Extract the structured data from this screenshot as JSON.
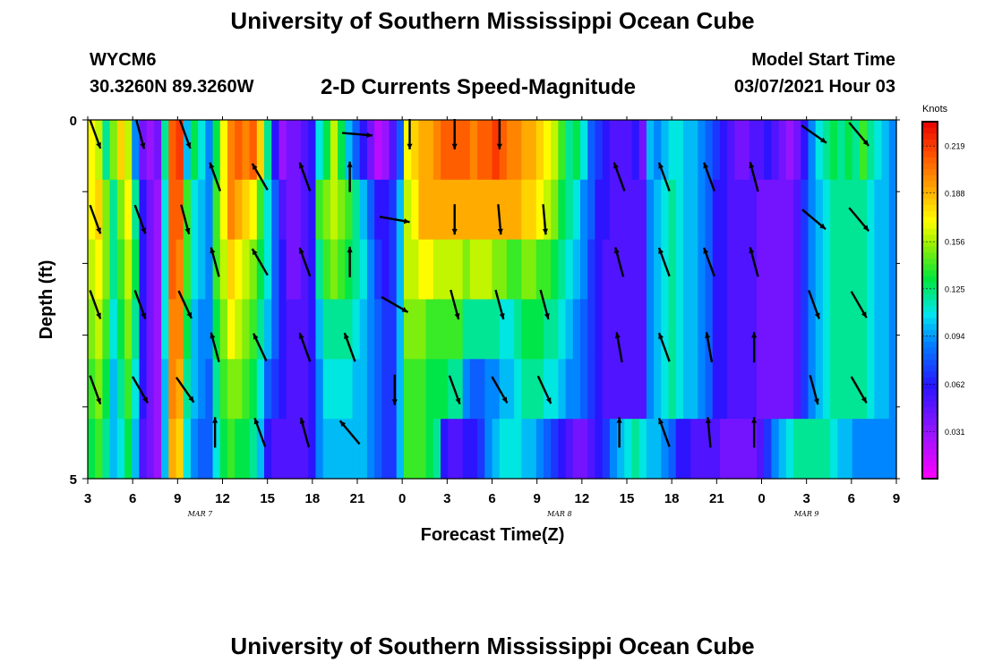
{
  "header": {
    "title": "University of Southern Mississippi Ocean Cube",
    "station": "WYCM6",
    "coords": "30.3260N 89.3260W",
    "subtitle": "2-D Currents Speed-Magnitude",
    "start_label": "Model Start Time",
    "start_value": "03/07/2021 Hour 03"
  },
  "footer": {
    "title": "University of Southern Mississippi Ocean Cube"
  },
  "chart_data": {
    "type": "heatmap",
    "title": "2-D Currents Speed-Magnitude",
    "xlabel": "Forecast Time(Z)",
    "ylabel": "Depth (ft)",
    "x_ticks": [
      "3",
      "6",
      "9",
      "12",
      "15",
      "18",
      "21",
      "0",
      "3",
      "6",
      "9",
      "12",
      "15",
      "18",
      "21",
      "0",
      "3",
      "6",
      "9"
    ],
    "date_labels": [
      {
        "label": "MAR 7",
        "at_hour_index": 2.5
      },
      {
        "label": "MAR 8",
        "at_hour_index": 10.5
      },
      {
        "label": "MAR 9",
        "at_hour_index": 16
      }
    ],
    "y_ticks": [
      "0",
      "5"
    ],
    "ylim": [
      0,
      5
    ],
    "hours_span": [
      0,
      54
    ],
    "colorbar": {
      "title": "Knots",
      "ticks": [
        "0.219",
        "0.188",
        "0.156",
        "0.125",
        "0.094",
        "0.062",
        "0.031"
      ],
      "range": [
        0.0,
        0.235
      ]
    },
    "speed_grid": [
      [
        0.17,
        0.16,
        0.12,
        0.15,
        0.18,
        0.16,
        0.09,
        0.04,
        0.03,
        0.04,
        0.12,
        0.21,
        0.22,
        0.1,
        0.13,
        0.11,
        0.09,
        0.13,
        0.17,
        0.2,
        0.21,
        0.2,
        0.21,
        0.18,
        0.12,
        0.06,
        0.03,
        0.04,
        0.04,
        0.05,
        0.06,
        0.11,
        0.13,
        0.16,
        0.13,
        0.1,
        0.08,
        0.06,
        0.04,
        0.02,
        0.03,
        0.05,
        0.08,
        0.17,
        0.18,
        0.19,
        0.19,
        0.2,
        0.21,
        0.21,
        0.21,
        0.21,
        0.2,
        0.21,
        0.21,
        0.22,
        0.21,
        0.2,
        0.2,
        0.19,
        0.19,
        0.18,
        0.17,
        0.16,
        0.14,
        0.12,
        0.13,
        0.11,
        0.08,
        0.07,
        0.06,
        0.05,
        0.05,
        0.05,
        0.06,
        0.04,
        0.1,
        0.09,
        0.1,
        0.11,
        0.11,
        0.1,
        0.1,
        0.09,
        0.08,
        0.07,
        0.06,
        0.05,
        0.04,
        0.04,
        0.05,
        0.05,
        0.06,
        0.05,
        0.04,
        0.03,
        0.04,
        0.06,
        0.09,
        0.11,
        0.12,
        0.13,
        0.12,
        0.13,
        0.12,
        0.14,
        0.12,
        0.11,
        0.1,
        0.09
      ],
      [
        0.17,
        0.18,
        0.15,
        0.12,
        0.15,
        0.17,
        0.12,
        0.06,
        0.04,
        0.03,
        0.11,
        0.21,
        0.21,
        0.14,
        0.11,
        0.1,
        0.09,
        0.14,
        0.17,
        0.2,
        0.19,
        0.18,
        0.17,
        0.14,
        0.11,
        0.08,
        0.05,
        0.04,
        0.04,
        0.05,
        0.06,
        0.14,
        0.15,
        0.16,
        0.15,
        0.14,
        0.12,
        0.1,
        0.08,
        0.06,
        0.06,
        0.07,
        0.1,
        0.16,
        0.17,
        0.19,
        0.19,
        0.19,
        0.19,
        0.19,
        0.19,
        0.19,
        0.19,
        0.19,
        0.19,
        0.19,
        0.19,
        0.19,
        0.19,
        0.18,
        0.18,
        0.17,
        0.16,
        0.15,
        0.13,
        0.12,
        0.11,
        0.09,
        0.08,
        0.06,
        0.06,
        0.05,
        0.05,
        0.05,
        0.05,
        0.05,
        0.09,
        0.1,
        0.11,
        0.12,
        0.11,
        0.1,
        0.1,
        0.09,
        0.08,
        0.06,
        0.06,
        0.05,
        0.05,
        0.05,
        0.05,
        0.04,
        0.04,
        0.04,
        0.04,
        0.04,
        0.05,
        0.07,
        0.09,
        0.1,
        0.11,
        0.12,
        0.12,
        0.12,
        0.12,
        0.12,
        0.11,
        0.1,
        0.1,
        0.09
      ],
      [
        0.16,
        0.17,
        0.15,
        0.12,
        0.14,
        0.16,
        0.13,
        0.06,
        0.04,
        0.03,
        0.11,
        0.21,
        0.2,
        0.14,
        0.11,
        0.1,
        0.09,
        0.14,
        0.16,
        0.18,
        0.17,
        0.16,
        0.15,
        0.13,
        0.11,
        0.08,
        0.06,
        0.04,
        0.04,
        0.05,
        0.06,
        0.12,
        0.14,
        0.15,
        0.14,
        0.13,
        0.12,
        0.11,
        0.09,
        0.07,
        0.06,
        0.07,
        0.1,
        0.16,
        0.16,
        0.17,
        0.17,
        0.16,
        0.16,
        0.16,
        0.16,
        0.15,
        0.16,
        0.16,
        0.16,
        0.15,
        0.15,
        0.14,
        0.14,
        0.15,
        0.15,
        0.14,
        0.14,
        0.13,
        0.12,
        0.11,
        0.1,
        0.09,
        0.07,
        0.06,
        0.05,
        0.05,
        0.05,
        0.05,
        0.05,
        0.05,
        0.09,
        0.1,
        0.11,
        0.12,
        0.11,
        0.1,
        0.1,
        0.09,
        0.08,
        0.06,
        0.06,
        0.05,
        0.05,
        0.05,
        0.05,
        0.04,
        0.04,
        0.04,
        0.04,
        0.04,
        0.05,
        0.07,
        0.09,
        0.1,
        0.11,
        0.12,
        0.12,
        0.12,
        0.12,
        0.12,
        0.11,
        0.1,
        0.1,
        0.09
      ],
      [
        0.15,
        0.16,
        0.14,
        0.11,
        0.13,
        0.15,
        0.12,
        0.06,
        0.04,
        0.03,
        0.11,
        0.2,
        0.2,
        0.13,
        0.1,
        0.09,
        0.09,
        0.13,
        0.15,
        0.17,
        0.16,
        0.15,
        0.14,
        0.12,
        0.1,
        0.08,
        0.06,
        0.05,
        0.05,
        0.05,
        0.06,
        0.1,
        0.12,
        0.12,
        0.12,
        0.12,
        0.11,
        0.1,
        0.09,
        0.08,
        0.07,
        0.07,
        0.1,
        0.15,
        0.15,
        0.15,
        0.14,
        0.14,
        0.14,
        0.14,
        0.14,
        0.12,
        0.12,
        0.12,
        0.12,
        0.12,
        0.11,
        0.11,
        0.12,
        0.13,
        0.13,
        0.13,
        0.12,
        0.12,
        0.11,
        0.1,
        0.09,
        0.08,
        0.07,
        0.06,
        0.05,
        0.05,
        0.05,
        0.05,
        0.05,
        0.05,
        0.09,
        0.1,
        0.11,
        0.12,
        0.11,
        0.1,
        0.1,
        0.09,
        0.08,
        0.06,
        0.06,
        0.05,
        0.05,
        0.05,
        0.05,
        0.04,
        0.04,
        0.04,
        0.04,
        0.04,
        0.05,
        0.07,
        0.09,
        0.1,
        0.11,
        0.12,
        0.12,
        0.12,
        0.12,
        0.12,
        0.11,
        0.1,
        0.1,
        0.09
      ],
      [
        0.14,
        0.15,
        0.13,
        0.1,
        0.12,
        0.14,
        0.11,
        0.06,
        0.04,
        0.03,
        0.1,
        0.2,
        0.19,
        0.12,
        0.1,
        0.09,
        0.08,
        0.12,
        0.14,
        0.15,
        0.15,
        0.14,
        0.13,
        0.11,
        0.08,
        0.07,
        0.06,
        0.05,
        0.05,
        0.05,
        0.06,
        0.09,
        0.11,
        0.11,
        0.11,
        0.11,
        0.1,
        0.1,
        0.09,
        0.08,
        0.07,
        0.07,
        0.1,
        0.14,
        0.14,
        0.14,
        0.13,
        0.13,
        0.13,
        0.12,
        0.12,
        0.09,
        0.08,
        0.08,
        0.09,
        0.09,
        0.1,
        0.1,
        0.11,
        0.12,
        0.12,
        0.12,
        0.11,
        0.11,
        0.1,
        0.09,
        0.09,
        0.08,
        0.07,
        0.06,
        0.05,
        0.05,
        0.05,
        0.05,
        0.05,
        0.05,
        0.09,
        0.1,
        0.11,
        0.12,
        0.11,
        0.1,
        0.1,
        0.09,
        0.08,
        0.06,
        0.06,
        0.05,
        0.05,
        0.05,
        0.05,
        0.04,
        0.04,
        0.04,
        0.04,
        0.04,
        0.05,
        0.07,
        0.09,
        0.1,
        0.11,
        0.12,
        0.12,
        0.12,
        0.12,
        0.12,
        0.11,
        0.1,
        0.1,
        0.09
      ],
      [
        0.13,
        0.14,
        0.12,
        0.1,
        0.11,
        0.13,
        0.1,
        0.05,
        0.04,
        0.03,
        0.1,
        0.19,
        0.18,
        0.11,
        0.09,
        0.08,
        0.08,
        0.11,
        0.13,
        0.14,
        0.13,
        0.13,
        0.12,
        0.1,
        0.06,
        0.05,
        0.05,
        0.05,
        0.05,
        0.05,
        0.06,
        0.09,
        0.1,
        0.1,
        0.1,
        0.1,
        0.1,
        0.1,
        0.09,
        0.08,
        0.07,
        0.07,
        0.1,
        0.14,
        0.14,
        0.14,
        0.13,
        0.12,
        0.06,
        0.05,
        0.05,
        0.06,
        0.06,
        0.07,
        0.09,
        0.1,
        0.11,
        0.11,
        0.11,
        0.1,
        0.1,
        0.09,
        0.08,
        0.07,
        0.06,
        0.05,
        0.04,
        0.04,
        0.05,
        0.06,
        0.07,
        0.09,
        0.1,
        0.11,
        0.12,
        0.11,
        0.1,
        0.1,
        0.09,
        0.08,
        0.06,
        0.06,
        0.05,
        0.05,
        0.05,
        0.05,
        0.04,
        0.04,
        0.04,
        0.04,
        0.04,
        0.05,
        0.07,
        0.09,
        0.1,
        0.11,
        0.12,
        0.12,
        0.12,
        0.12,
        0.12,
        0.11,
        0.1,
        0.1,
        0.09,
        0.09,
        0.09,
        0.09,
        0.09,
        0.09
      ]
    ],
    "arrow_rows": [
      [
        [
          2,
          160
        ],
        [
          3,
          160
        ],
        [
          4,
          160
        ],
        [
          0,
          0
        ],
        [
          0,
          0
        ],
        [
          0,
          0
        ],
        [
          0,
          0
        ],
        [
          0,
          0
        ],
        [
          1,
          95
        ],
        [
          2,
          180
        ],
        [
          3,
          180
        ],
        [
          4,
          180
        ],
        [
          0,
          0
        ],
        [
          0,
          0
        ],
        [
          0,
          0
        ],
        [
          0,
          0
        ],
        [
          0,
          0
        ],
        [
          0,
          0
        ],
        [
          0,
          0
        ],
        [
          0,
          0
        ],
        [
          0,
          0
        ],
        [
          0,
          0
        ],
        [
          3,
          125
        ],
        [
          4,
          135
        ]
      ],
      [
        [
          5,
          160
        ],
        [
          6,
          160
        ],
        [
          7,
          160
        ],
        [
          8,
          160
        ],
        [
          9,
          150
        ],
        [
          10,
          160
        ],
        [
          11,
          0
        ],
        [
          12,
          100
        ],
        [
          13,
          180
        ],
        [
          14,
          175
        ],
        [
          15,
          175
        ],
        [
          16,
          345
        ],
        [
          17,
          340
        ],
        [
          18,
          340
        ],
        [
          19,
          340
        ],
        [
          20,
          345
        ],
        [
          21,
          340
        ],
        [
          22,
          125
        ],
        [
          23,
          140
        ]
      ],
      [
        [
          0,
          0
        ]
      ]
    ],
    "arrows": [
      {
        "x_hour": 3.5,
        "row": 0,
        "angle": 160
      },
      {
        "x_hour": 6.5,
        "row": 0,
        "angle": 165
      },
      {
        "x_hour": 9.5,
        "row": 0,
        "angle": 160
      },
      {
        "x_hour": 21.0,
        "row": 0,
        "angle": 95
      },
      {
        "x_hour": 24.5,
        "row": 0,
        "angle": 180
      },
      {
        "x_hour": 27.5,
        "row": 0,
        "angle": 180
      },
      {
        "x_hour": 30.5,
        "row": 0,
        "angle": 180
      },
      {
        "x_hour": 51.5,
        "row": 0,
        "angle": 125
      },
      {
        "x_hour": 54.5,
        "row": 0,
        "angle": 140
      },
      {
        "x_hour": 11.5,
        "row": 1,
        "angle": 340
      },
      {
        "x_hour": 14.5,
        "row": 1,
        "angle": 330
      },
      {
        "x_hour": 17.5,
        "row": 1,
        "angle": 340
      },
      {
        "x_hour": 20.5,
        "row": 1,
        "angle": 0
      },
      {
        "x_hour": 38.5,
        "row": 1,
        "angle": 340
      },
      {
        "x_hour": 41.5,
        "row": 1,
        "angle": 340
      },
      {
        "x_hour": 44.5,
        "row": 1,
        "angle": 340
      },
      {
        "x_hour": 47.5,
        "row": 1,
        "angle": 345
      },
      {
        "x_hour": 3.5,
        "row": 2,
        "angle": 160
      },
      {
        "x_hour": 6.5,
        "row": 2,
        "angle": 160
      },
      {
        "x_hour": 9.5,
        "row": 2,
        "angle": 165
      },
      {
        "x_hour": 23.5,
        "row": 2,
        "angle": 100
      },
      {
        "x_hour": 27.5,
        "row": 2,
        "angle": 180
      },
      {
        "x_hour": 30.5,
        "row": 2,
        "angle": 175
      },
      {
        "x_hour": 33.5,
        "row": 2,
        "angle": 175
      },
      {
        "x_hour": 51.5,
        "row": 2,
        "angle": 130
      },
      {
        "x_hour": 54.5,
        "row": 2,
        "angle": 140
      },
      {
        "x_hour": 11.5,
        "row": 3,
        "angle": 345
      },
      {
        "x_hour": 14.5,
        "row": 3,
        "angle": 330
      },
      {
        "x_hour": 17.5,
        "row": 3,
        "angle": 340
      },
      {
        "x_hour": 20.5,
        "row": 3,
        "angle": 0
      },
      {
        "x_hour": 38.5,
        "row": 3,
        "angle": 345
      },
      {
        "x_hour": 41.5,
        "row": 3,
        "angle": 340
      },
      {
        "x_hour": 44.5,
        "row": 3,
        "angle": 340
      },
      {
        "x_hour": 47.5,
        "row": 3,
        "angle": 345
      },
      {
        "x_hour": 3.5,
        "row": 4,
        "angle": 160
      },
      {
        "x_hour": 6.5,
        "row": 4,
        "angle": 160
      },
      {
        "x_hour": 9.5,
        "row": 4,
        "angle": 155
      },
      {
        "x_hour": 23.5,
        "row": 4,
        "angle": 120
      },
      {
        "x_hour": 27.5,
        "row": 4,
        "angle": 165
      },
      {
        "x_hour": 30.5,
        "row": 4,
        "angle": 165
      },
      {
        "x_hour": 33.5,
        "row": 4,
        "angle": 165
      },
      {
        "x_hour": 51.5,
        "row": 4,
        "angle": 160
      },
      {
        "x_hour": 54.5,
        "row": 4,
        "angle": 150
      },
      {
        "x_hour": 11.5,
        "row": 5,
        "angle": 345
      },
      {
        "x_hour": 14.5,
        "row": 5,
        "angle": 335
      },
      {
        "x_hour": 17.5,
        "row": 5,
        "angle": 340
      },
      {
        "x_hour": 20.5,
        "row": 5,
        "angle": 340
      },
      {
        "x_hour": 38.5,
        "row": 5,
        "angle": 350
      },
      {
        "x_hour": 41.5,
        "row": 5,
        "angle": 340
      },
      {
        "x_hour": 44.5,
        "row": 5,
        "angle": 350
      },
      {
        "x_hour": 47.5,
        "row": 5,
        "angle": 0
      },
      {
        "x_hour": 3.5,
        "row": 6,
        "angle": 160
      },
      {
        "x_hour": 6.5,
        "row": 6,
        "angle": 150
      },
      {
        "x_hour": 9.5,
        "row": 6,
        "angle": 145
      },
      {
        "x_hour": 23.5,
        "row": 6,
        "angle": 180
      },
      {
        "x_hour": 27.5,
        "row": 6,
        "angle": 160
      },
      {
        "x_hour": 30.5,
        "row": 6,
        "angle": 150
      },
      {
        "x_hour": 33.5,
        "row": 6,
        "angle": 155
      },
      {
        "x_hour": 51.5,
        "row": 6,
        "angle": 165
      },
      {
        "x_hour": 54.5,
        "row": 6,
        "angle": 150
      },
      {
        "x_hour": 11.5,
        "row": 7,
        "angle": 0
      },
      {
        "x_hour": 14.5,
        "row": 7,
        "angle": 340
      },
      {
        "x_hour": 17.5,
        "row": 7,
        "angle": 345
      },
      {
        "x_hour": 20.5,
        "row": 7,
        "angle": 320
      },
      {
        "x_hour": 38.5,
        "row": 7,
        "angle": 0
      },
      {
        "x_hour": 41.5,
        "row": 7,
        "angle": 340
      },
      {
        "x_hour": 44.5,
        "row": 7,
        "angle": 355
      },
      {
        "x_hour": 47.5,
        "row": 7,
        "angle": 0
      }
    ],
    "grid": false,
    "legend": "colorbar-right"
  }
}
